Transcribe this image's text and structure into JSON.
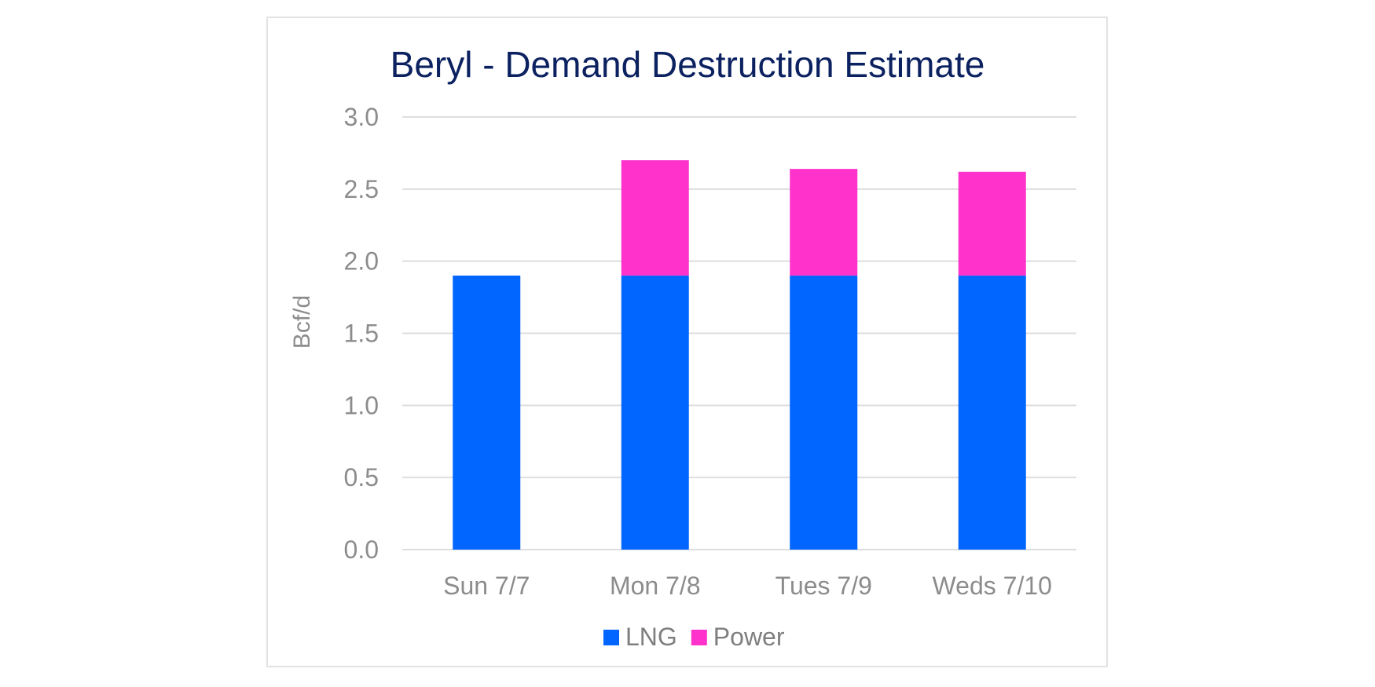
{
  "chart_data": {
    "type": "bar",
    "stacked": true,
    "title": "Beryl - Demand Destruction Estimate",
    "xlabel": "",
    "ylabel": "Bcf/d",
    "categories": [
      "Sun 7/7",
      "Mon 7/8",
      "Tues 7/9",
      "Weds 7/10"
    ],
    "series": [
      {
        "name": "LNG",
        "color": "#0066ff",
        "values": [
          1.9,
          1.9,
          1.9,
          1.9
        ]
      },
      {
        "name": "Power",
        "color": "#ff33cc",
        "values": [
          0,
          0.8,
          0.74,
          0.72
        ]
      }
    ],
    "ylim": [
      0,
      3.0
    ],
    "yticks": [
      "0.0",
      "0.5",
      "1.0",
      "1.5",
      "2.0",
      "2.5",
      "3.0"
    ],
    "grid": true,
    "legend_position": "bottom"
  }
}
